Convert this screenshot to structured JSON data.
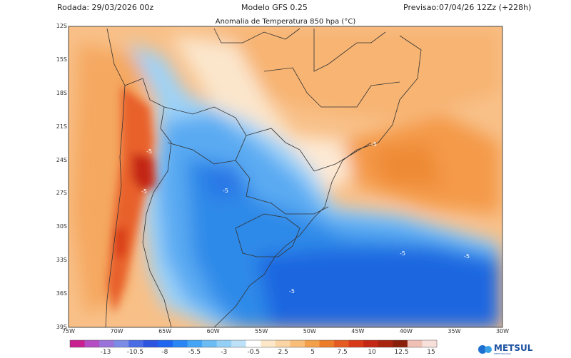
{
  "header": {
    "run": "Rodada: 29/03/2026 00z",
    "model": "Modelo GFS 0.25",
    "forecast": "Previsao:07/04/26 12Zz (+228h)",
    "subtitle": "Anomalia de Temperatura 850 hpa (°C)"
  },
  "map": {
    "lat_labels": [
      "12S",
      "15S",
      "18S",
      "21S",
      "24S",
      "27S",
      "30S",
      "33S",
      "36S",
      "39S"
    ],
    "lon_labels": [
      "75W",
      "70W",
      "65W",
      "60W",
      "55W",
      "50W",
      "45W",
      "40W",
      "35W",
      "30W"
    ],
    "contour_labels": [
      "-5",
      "-5",
      "-5",
      "-5",
      "-5",
      "-5",
      "-5"
    ]
  },
  "colorbar": {
    "labels": [
      "-13",
      "-10.5",
      "-8",
      "-5.5",
      "-3",
      "-0.5",
      "2.5",
      "5",
      "7.5",
      "10",
      "12.5",
      "15"
    ],
    "colors": [
      "#c8208f",
      "#b44cc4",
      "#9a73da",
      "#7b8ce6",
      "#4c6ce6",
      "#2e55e0",
      "#1e66f0",
      "#2a86f4",
      "#44a4f6",
      "#6cbcf4",
      "#94d0f6",
      "#bde2f8",
      "#ffffff",
      "#fce8c8",
      "#fad4a2",
      "#f8be78",
      "#f4a04a",
      "#ec7c2a",
      "#e45a20",
      "#d83a18",
      "#c42814",
      "#a8240e",
      "#8a200c",
      "#f0c0b4",
      "#f8e0da"
    ]
  },
  "branding": {
    "logo": "METSUL",
    "tagline": "METEOROLOGIA"
  }
}
